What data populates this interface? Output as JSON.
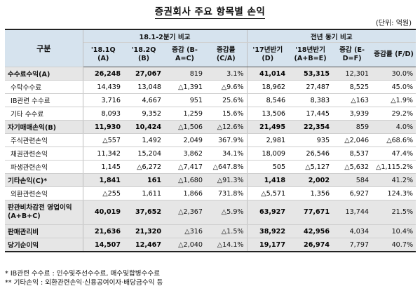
{
  "title": "증권회사 주요 항목별 손익",
  "unit": "(단위: 억원)",
  "header": {
    "gubun": "구분",
    "group1": "18.1-2분기 비교",
    "group2": "전년 동기 비교",
    "cols": [
      "'18.1Q (A)",
      "'18.2Q (B)",
      "증감 (B-A=C)",
      "증감률 (C/A)",
      "'17년반기 (D)",
      "'18년반기 (A+B=E)",
      "증감 (E-D=F)",
      "증감률 (F/D)"
    ]
  },
  "rows": [
    {
      "label": "수수료수익(A)",
      "type": "main",
      "values": [
        "26,248",
        "27,067",
        "819",
        "3.1%",
        "41,014",
        "53,315",
        "12,301",
        "30.0%"
      ]
    },
    {
      "label": "수탁수수료",
      "type": "sub",
      "values": [
        "14,439",
        "13,048",
        "△1,391",
        "△9.6%",
        "18,962",
        "27,487",
        "8,525",
        "45.0%"
      ]
    },
    {
      "label": "IB관련 수수료",
      "type": "sub",
      "values": [
        "3,716",
        "4,667",
        "951",
        "25.6%",
        "8,546",
        "8,383",
        "△163",
        "△1.9%"
      ]
    },
    {
      "label": "기타 수수료",
      "type": "sub",
      "values": [
        "8,093",
        "9,352",
        "1,259",
        "15.6%",
        "13,506",
        "17,445",
        "3,939",
        "29.2%"
      ]
    },
    {
      "label": "자기매매손익(B)",
      "type": "main",
      "values": [
        "11,930",
        "10,424",
        "△1,506",
        "△12.6%",
        "21,495",
        "22,354",
        "859",
        "4.0%"
      ]
    },
    {
      "label": "주식관련손익",
      "type": "sub",
      "values": [
        "△557",
        "1,492",
        "2,049",
        "367.9%",
        "2,981",
        "935",
        "△2,046",
        "△68.6%"
      ]
    },
    {
      "label": "채권관련손익",
      "type": "sub",
      "values": [
        "11,342",
        "15,204",
        "3,862",
        "34.1%",
        "18,009",
        "26,546",
        "8,537",
        "47.4%"
      ]
    },
    {
      "label": "파생관련손익",
      "type": "sub",
      "values": [
        "1,145",
        "△6,272",
        "△7,417",
        "△647.8%",
        "505",
        "△5,127",
        "△5,632",
        "△1,115.2%"
      ]
    },
    {
      "label": "기타손익(C)*",
      "type": "main",
      "values": [
        "1,841",
        "161",
        "△1,680",
        "△91.3%",
        "1,418",
        "2,002",
        "584",
        "41.2%"
      ]
    },
    {
      "label": "외환관련손익",
      "type": "sub",
      "values": [
        "△255",
        "1,611",
        "1,866",
        "731.8%",
        "△5,571",
        "1,356",
        "6,927",
        "124.3%"
      ]
    },
    {
      "label": "판관비차감전 영업이익(A+B+C)",
      "type": "main-tall",
      "values": [
        "40,019",
        "37,652",
        "△2,367",
        "△5.9%",
        "63,927",
        "77,671",
        "13,744",
        "21.5%"
      ]
    },
    {
      "label": "판매관리비",
      "type": "main",
      "values": [
        "21,636",
        "21,320",
        "△316",
        "△1.5%",
        "38,922",
        "42,956",
        "4,034",
        "10.4%"
      ]
    },
    {
      "label": "당기순이익",
      "type": "main-last",
      "values": [
        "14,507",
        "12,467",
        "△2,040",
        "△14.1%",
        "19,177",
        "26,974",
        "7,797",
        "40.7%"
      ]
    }
  ],
  "notes": [
    "* IB관련 수수료 : 인수및주선수수료, 매수및합병수수료",
    "** 기타손익 : 외환관련손익·신용공여이자·배당금수익 등"
  ]
}
